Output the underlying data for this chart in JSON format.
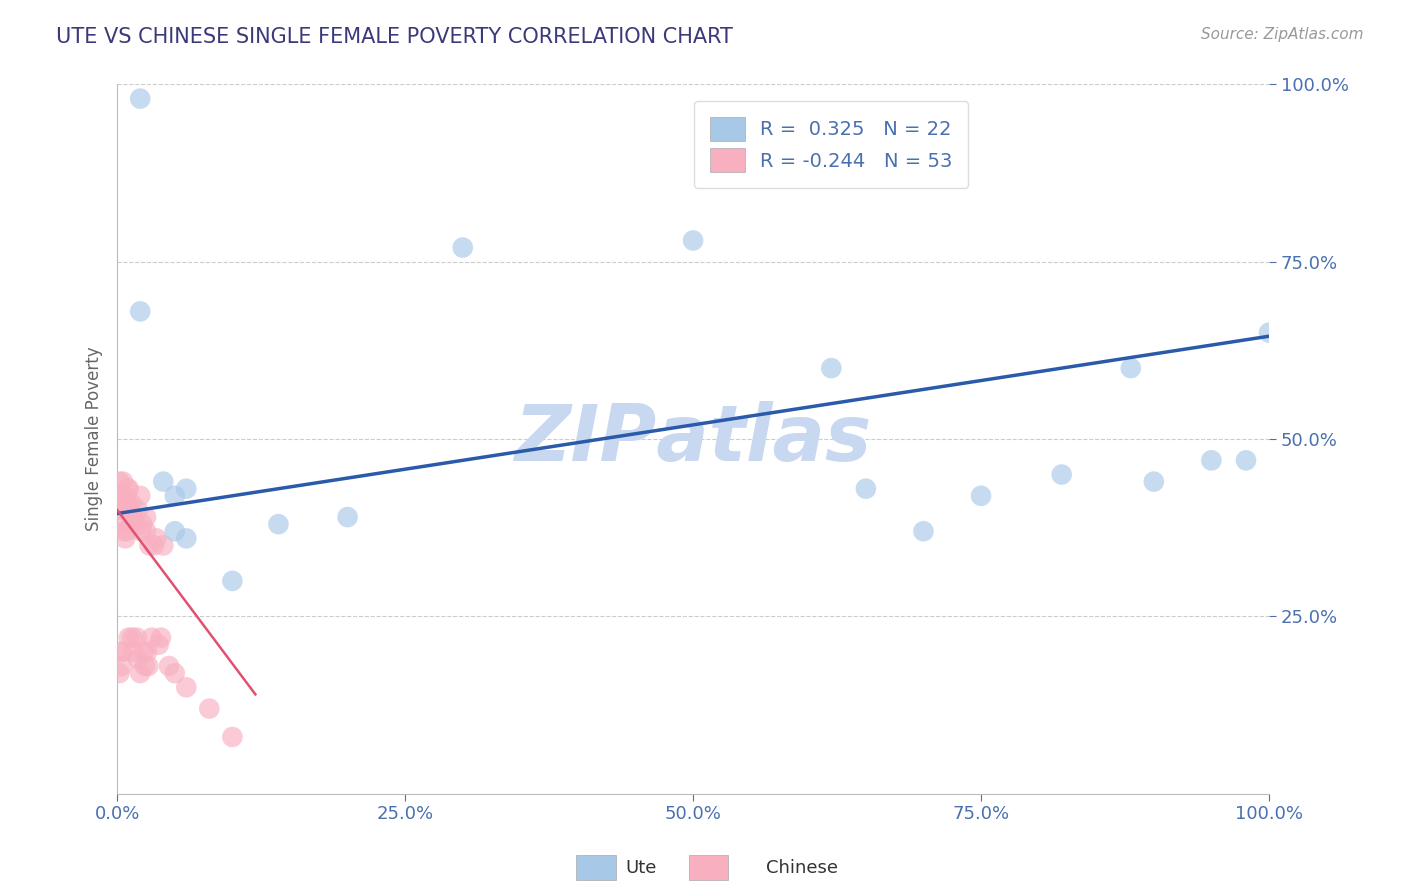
{
  "title": "UTE VS CHINESE SINGLE FEMALE POVERTY CORRELATION CHART",
  "source_text": "Source: ZipAtlas.com",
  "ylabel": "Single Female Poverty",
  "legend_label_ute": "Ute",
  "legend_label_chinese": "Chinese",
  "r_ute": 0.325,
  "n_ute": 22,
  "r_chinese": -0.244,
  "n_chinese": 53,
  "ute_color": "#a8c8e8",
  "chinese_color": "#f8b0c0",
  "ute_line_color": "#2a5aaa",
  "chinese_line_color": "#e05070",
  "background_color": "#ffffff",
  "grid_color": "#cccccc",
  "title_color": "#3a3a7a",
  "axis_label_color": "#4a70b0",
  "watermark_color": "#c8d8f0",
  "ute_points_x": [
    0.02,
    0.02,
    0.04,
    0.05,
    0.05,
    0.06,
    0.06,
    0.1,
    0.14,
    0.2,
    0.3,
    0.5,
    0.62,
    0.65,
    0.7,
    0.75,
    0.82,
    0.88,
    0.9,
    0.95,
    0.98,
    1.0
  ],
  "ute_points_y": [
    0.98,
    0.68,
    0.44,
    0.42,
    0.37,
    0.43,
    0.36,
    0.3,
    0.38,
    0.39,
    0.77,
    0.78,
    0.6,
    0.43,
    0.37,
    0.42,
    0.45,
    0.6,
    0.44,
    0.47,
    0.47,
    0.65
  ],
  "chinese_points_x": [
    0.001,
    0.002,
    0.002,
    0.003,
    0.003,
    0.004,
    0.004,
    0.005,
    0.005,
    0.005,
    0.006,
    0.006,
    0.007,
    0.007,
    0.008,
    0.008,
    0.009,
    0.009,
    0.01,
    0.01,
    0.01,
    0.011,
    0.012,
    0.012,
    0.013,
    0.014,
    0.015,
    0.016,
    0.017,
    0.018,
    0.018,
    0.02,
    0.02,
    0.021,
    0.022,
    0.023,
    0.024,
    0.025,
    0.025,
    0.026,
    0.027,
    0.028,
    0.03,
    0.032,
    0.034,
    0.036,
    0.038,
    0.04,
    0.045,
    0.05,
    0.06,
    0.08,
    0.1
  ],
  "chinese_points_y": [
    0.42,
    0.44,
    0.17,
    0.4,
    0.2,
    0.42,
    0.18,
    0.44,
    0.38,
    0.2,
    0.4,
    0.37,
    0.42,
    0.36,
    0.4,
    0.37,
    0.43,
    0.41,
    0.43,
    0.4,
    0.22,
    0.4,
    0.41,
    0.38,
    0.22,
    0.2,
    0.39,
    0.38,
    0.22,
    0.4,
    0.19,
    0.42,
    0.17,
    0.37,
    0.38,
    0.2,
    0.18,
    0.39,
    0.37,
    0.2,
    0.18,
    0.35,
    0.22,
    0.35,
    0.36,
    0.21,
    0.22,
    0.35,
    0.18,
    0.17,
    0.15,
    0.12,
    0.08
  ],
  "ute_line_x": [
    0.0,
    1.0
  ],
  "ute_line_y": [
    0.395,
    0.645
  ],
  "chinese_line_x": [
    0.0,
    0.12
  ],
  "chinese_line_y": [
    0.4,
    0.14
  ],
  "xlim": [
    0.0,
    1.0
  ],
  "ylim": [
    0.0,
    1.0
  ],
  "xticks": [
    0.0,
    0.25,
    0.5,
    0.75,
    1.0
  ],
  "yticks": [
    0.25,
    0.5,
    0.75,
    1.0
  ],
  "xticklabels": [
    "0.0%",
    "25.0%",
    "50.0%",
    "75.0%",
    "100.0%"
  ],
  "yticklabels": [
    "25.0%",
    "50.0%",
    "75.0%",
    "100.0%"
  ]
}
